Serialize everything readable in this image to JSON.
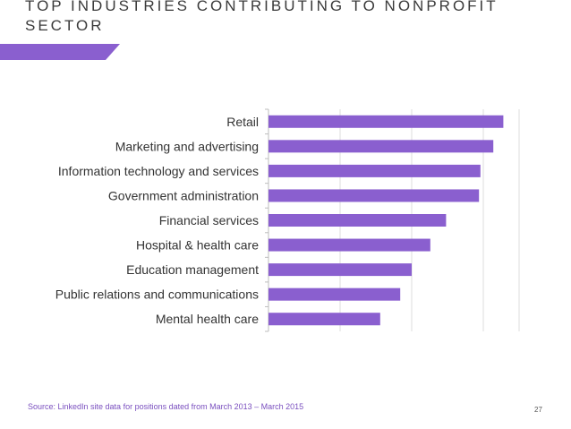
{
  "slide": {
    "title_line1": "TOP INDUSTRIES CONTRIBUTING TO NONPROFIT",
    "title_line2": "SECTOR",
    "source": "Source: LinkedIn site data for positions dated from March 2013 – March 2015",
    "page_number": "27",
    "accent_color": "#8a5fcf"
  },
  "chart_data": {
    "type": "bar",
    "orientation": "horizontal",
    "title": "",
    "xlabel": "",
    "ylabel": "",
    "categories": [
      "Retail",
      "Marketing and advertising",
      "Information technology and services",
      "Government administration",
      "Financial services",
      "Hospital & health care",
      "Education management",
      "Public relations and communications",
      "Mental health care"
    ],
    "values": [
      8.2,
      7.85,
      7.4,
      7.35,
      6.2,
      5.65,
      5.0,
      4.6,
      3.9
    ],
    "xlim": [
      0,
      8.75
    ],
    "tick_labels_shown": false,
    "grid": true,
    "bar_color": "#8a5fcf"
  }
}
